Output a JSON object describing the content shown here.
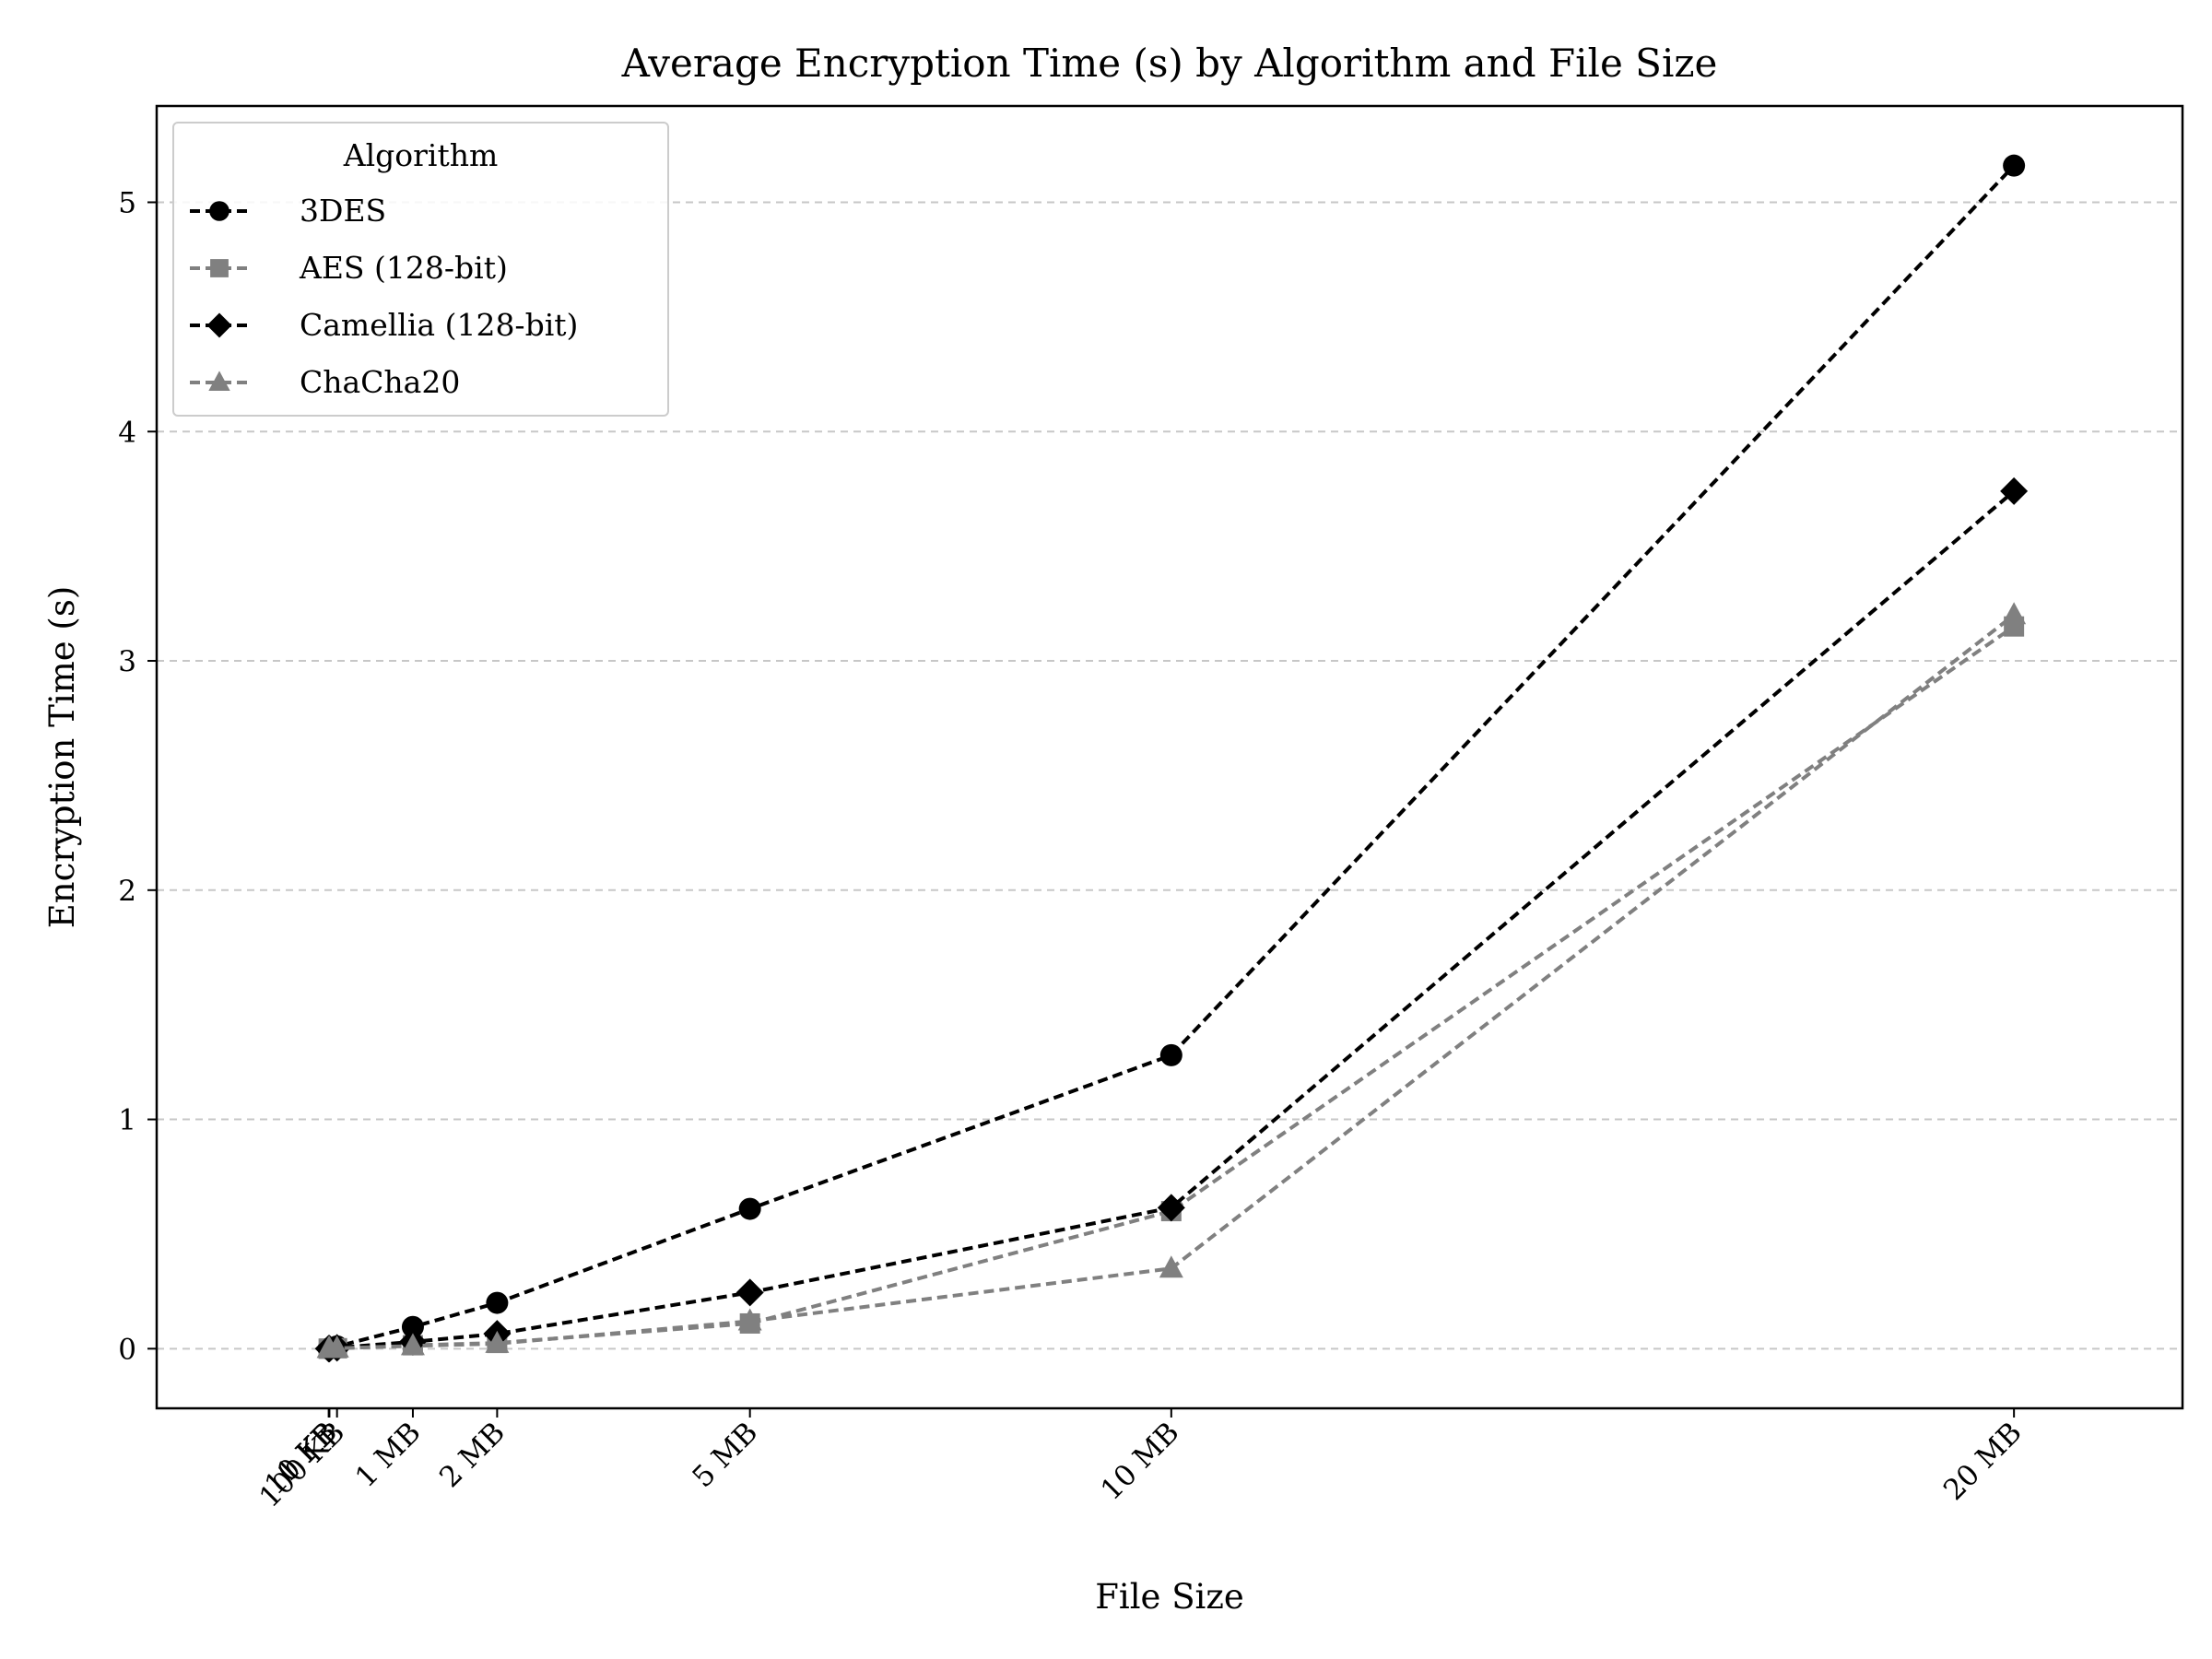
{
  "chart_data": {
    "type": "line",
    "title": "Average Encryption Time (s) by Algorithm and File Size",
    "xlabel": "File Size",
    "ylabel": "Encryption Time (s)",
    "x_values_mb": [
      0.001,
      0.01,
      0.1,
      1,
      2,
      5,
      10,
      20
    ],
    "x_tick_labels": [
      "1 KB",
      "10 KB",
      "100 KB",
      "1 MB",
      "2 MB",
      "5 MB",
      "10 MB",
      "20 MB"
    ],
    "xlim": [
      -2.04,
      22.0
    ],
    "ylim": [
      -0.26,
      5.42
    ],
    "yticks": [
      0,
      1,
      2,
      3,
      4,
      5
    ],
    "grid": "y-dashed",
    "legend_title": "Algorithm",
    "legend_position": "top-left",
    "series": [
      {
        "name": "3DES",
        "color": "#000000",
        "marker": "circle",
        "values": [
          0.0002,
          0.001,
          0.01,
          0.095,
          0.2,
          0.61,
          1.28,
          5.16
        ]
      },
      {
        "name": "AES (128-bit)",
        "color": "#808080",
        "marker": "square",
        "values": [
          2e-05,
          0.0002,
          0.002,
          0.015,
          0.025,
          0.11,
          0.6,
          3.15
        ]
      },
      {
        "name": "Camellia (128-bit)",
        "color": "#000000",
        "marker": "diamond",
        "values": [
          0.0001,
          0.0005,
          0.004,
          0.03,
          0.065,
          0.245,
          0.615,
          3.74
        ]
      },
      {
        "name": "ChaCha20",
        "color": "#808080",
        "marker": "triangle",
        "values": [
          2e-05,
          0.0002,
          0.002,
          0.012,
          0.022,
          0.12,
          0.35,
          3.2
        ]
      }
    ]
  }
}
